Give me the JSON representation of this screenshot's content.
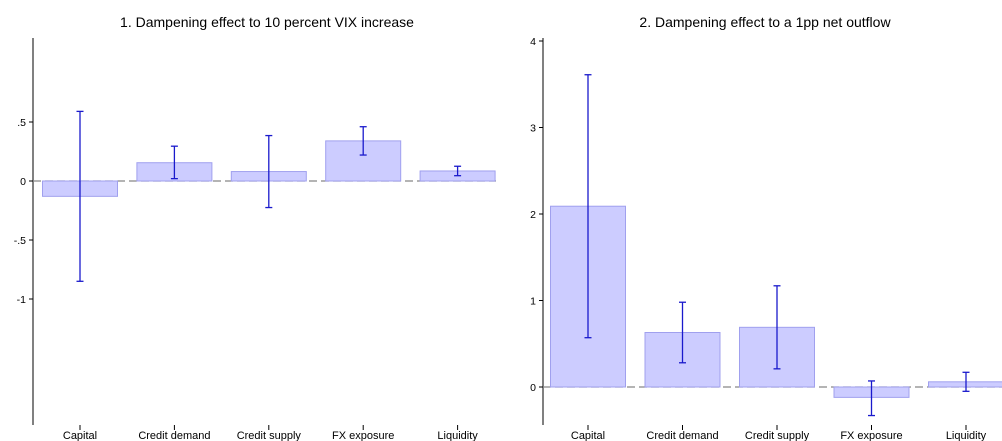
{
  "chart_data": [
    {
      "type": "bar",
      "title": "1. Dampening effect to 10 percent VIX increase",
      "xlabel": "",
      "ylabel": "",
      "categories": [
        "Capital",
        "Credit demand",
        "Credit supply",
        "FX exposure",
        "Liquidity"
      ],
      "values": [
        -0.13,
        0.155,
        0.08,
        0.34,
        0.085
      ],
      "ci_low": [
        -0.85,
        0.02,
        -0.225,
        0.22,
        0.045
      ],
      "ci_high": [
        0.59,
        0.295,
        0.385,
        0.46,
        0.125
      ],
      "ylim": [
        -1.02,
        0.6
      ],
      "yticks": [
        -1,
        -0.5,
        0,
        0.5
      ],
      "ytick_labels": [
        "-1",
        "-.5",
        "0",
        ".5"
      ],
      "grid": false,
      "zero_line": true
    },
    {
      "type": "bar",
      "title": "2. Dampening effect to a 1pp net outflow",
      "xlabel": "",
      "ylabel": "",
      "categories": [
        "Capital",
        "Credit demand",
        "Credit supply",
        "FX exposure",
        "Liquidity"
      ],
      "values": [
        2.09,
        0.63,
        0.69,
        -0.12,
        0.06
      ],
      "ci_low": [
        0.57,
        0.28,
        0.21,
        -0.33,
        -0.05
      ],
      "ci_high": [
        3.61,
        0.98,
        1.17,
        0.07,
        0.17
      ],
      "ylim": [
        -0.3,
        4.1
      ],
      "yticks": [
        0,
        1,
        2,
        3,
        4
      ],
      "ytick_labels": [
        "0",
        "1",
        "2",
        "3",
        "4"
      ],
      "grid": false,
      "zero_line": true
    }
  ],
  "colors": {
    "bar_fill": "#ccccff",
    "bar_stroke": "#a0a0ee",
    "error_bar": "#1a1acc",
    "zero_line": "#888888",
    "axis": "#000000"
  }
}
